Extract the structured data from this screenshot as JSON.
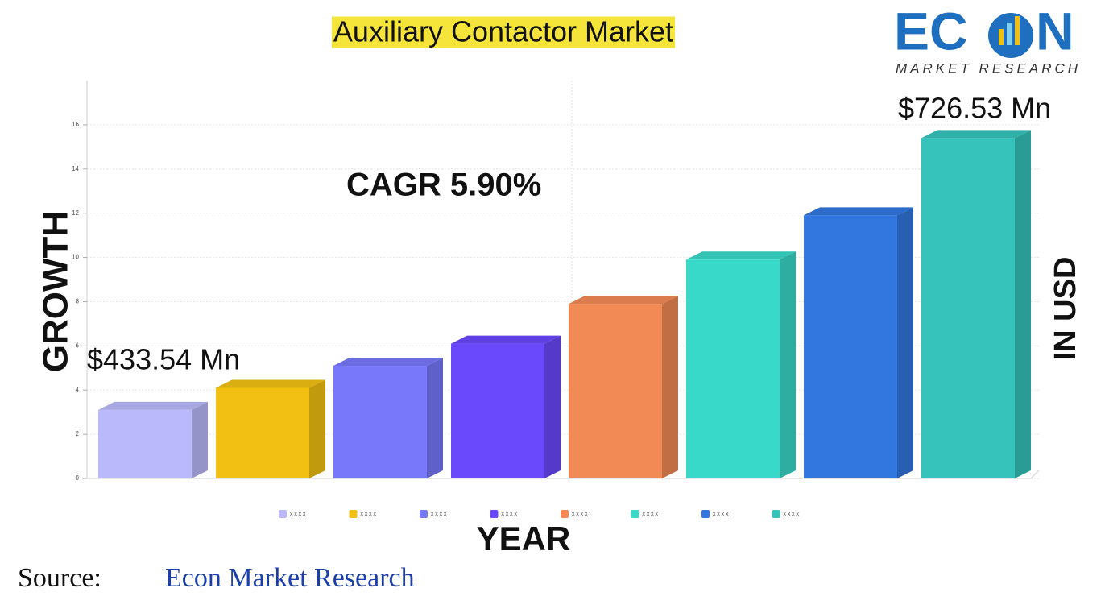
{
  "chart_data": {
    "type": "bar3d",
    "title": "Auxiliary Contactor Market",
    "categories": [
      "XXXX",
      "XXXX",
      "XXXX",
      "XXXX",
      "XXXX",
      "XXXX",
      "XXXX",
      "XXXX"
    ],
    "values": [
      3.1,
      4.1,
      5.1,
      6.1,
      7.9,
      9.9,
      11.9,
      15.4
    ],
    "colors": [
      "#b9b9fb",
      "#f2c012",
      "#7878fb",
      "#6a48fb",
      "#f28a55",
      "#38d9c8",
      "#3277e0",
      "#35c3bc"
    ],
    "ylim": [
      0,
      18
    ],
    "yticks": [
      0,
      2,
      4,
      6,
      8,
      10,
      12,
      14,
      16
    ],
    "grid": true,
    "xlabel": "YEAR",
    "ylabel": "GROWTH",
    "y2label": "IN USD",
    "annotations": [
      "CAGR 5.90%",
      "$433.54 Mn",
      "$726.53 Mn"
    ]
  },
  "source": {
    "label": "Source:",
    "name": "Econ Market Research"
  },
  "logo": {
    "left": "EC",
    "right": "N",
    "tagline": "MARKET RESEARCH"
  }
}
